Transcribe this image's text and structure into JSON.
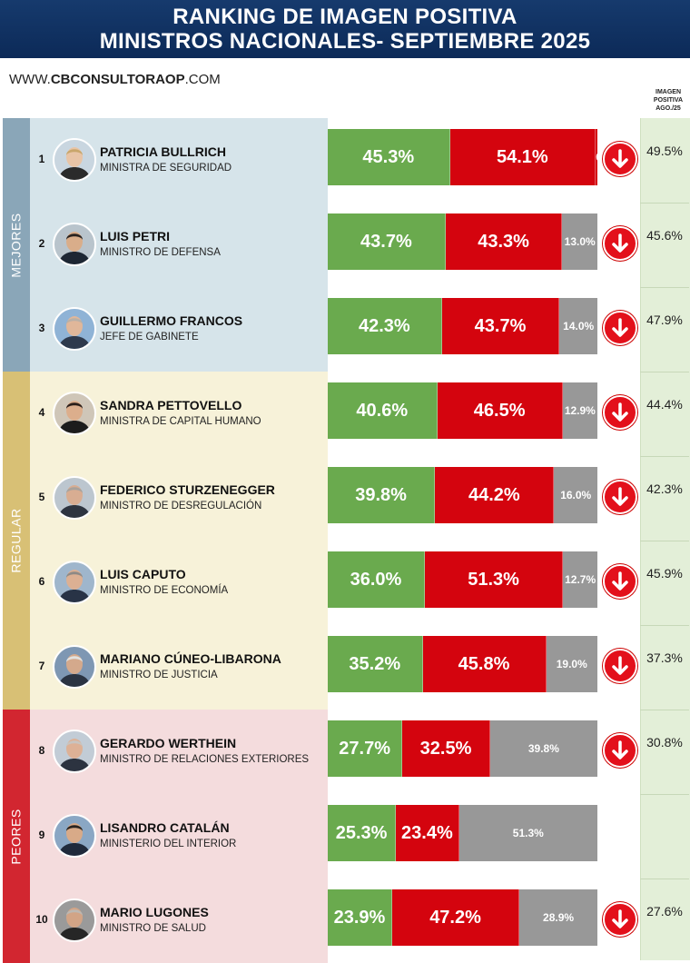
{
  "header": {
    "title_line1": "RANKING DE IMAGEN POSITIVA",
    "title_line2": "MINISTROS NACIONALES- SEPTIEMBRE 2025"
  },
  "website": {
    "prefix": "WWW.",
    "brand": "CBCONSULTORAOP",
    "suffix": ".COM"
  },
  "prev_column_header": [
    "IMAGEN",
    "POSITIVA",
    "AGO./25"
  ],
  "groups": [
    {
      "label": "MEJORES",
      "color": "#8aa6b8",
      "bg": "#d6e4ea"
    },
    {
      "label": "REGULAR",
      "color": "#d8c075",
      "bg": "#f7f2d9"
    },
    {
      "label": "PEORES",
      "color": "#d22630",
      "bg": "#f4dcdd"
    }
  ],
  "colors": {
    "positive": "#6aaa4e",
    "negative": "#d4040e",
    "nsnc": "#989898",
    "arrow": "#e3101b",
    "header": "#163a6d"
  },
  "chart_data": {
    "type": "bar",
    "stacked": true,
    "orientation": "horizontal",
    "title": "RANKING DE IMAGEN POSITIVA MINISTROS NACIONALES- SEPTIEMBRE 2025",
    "categories": [
      "PATRICIA BULLRICH",
      "LUIS PETRI",
      "GUILLERMO FRANCOS",
      "SANDRA PETTOVELLO",
      "FEDERICO STURZENEGGER",
      "LUIS CAPUTO",
      "MARIANO CÚNEO-LIBARONA",
      "GERARDO WERTHEIN",
      "LISANDRO CATALÁN",
      "MARIO LUGONES"
    ],
    "series": [
      {
        "values": [
          45.3,
          43.7,
          42.3,
          40.6,
          39.8,
          36.0,
          35.2,
          27.7,
          25.3,
          23.9
        ]
      },
      {
        "values": [
          54.1,
          43.3,
          43.7,
          46.5,
          44.2,
          51.3,
          45.8,
          32.5,
          23.4,
          47.2
        ]
      },
      {
        "values": [
          0.6,
          13.0,
          14.0,
          12.9,
          16.0,
          12.7,
          19.0,
          39.8,
          51.3,
          28.9
        ]
      }
    ],
    "previous_positive": [
      49.5,
      45.6,
      47.9,
      44.4,
      42.3,
      45.9,
      37.3,
      30.8,
      null,
      27.6
    ],
    "xlim": [
      0,
      100
    ]
  },
  "rows": [
    {
      "rank": "1",
      "name": "PATRICIA BULLRICH",
      "role": "MINISTRA DE SEGURIDAD",
      "group": 0,
      "pos": 45.3,
      "neg": 54.1,
      "nsnc": 0.6,
      "pos_label": "45.3%",
      "neg_label": "54.1%",
      "nsnc_label": "0.6",
      "prev": "49.5%",
      "arrow": true,
      "skin": "#e8c4a6",
      "hair": "#c9a66b",
      "shirt": "#2b2b2b",
      "bgc": "#c9d6e0"
    },
    {
      "rank": "2",
      "name": "LUIS PETRI",
      "role": "MINISTRO DE DEFENSA",
      "group": 0,
      "pos": 43.7,
      "neg": 43.3,
      "nsnc": 13.0,
      "pos_label": "43.7%",
      "neg_label": "43.3%",
      "nsnc_label": "13.0%",
      "prev": "45.6%",
      "arrow": true,
      "skin": "#d9ad8a",
      "hair": "#2a2320",
      "shirt": "#1d2633",
      "bgc": "#b9c4cc"
    },
    {
      "rank": "3",
      "name": "GUILLERMO FRANCOS",
      "role": "JEFE DE GABINETE",
      "group": 0,
      "pos": 42.3,
      "neg": 43.7,
      "nsnc": 14.0,
      "pos_label": "42.3%",
      "neg_label": "43.7%",
      "nsnc_label": "14.0%",
      "prev": "47.9%",
      "arrow": true,
      "skin": "#e0b79a",
      "hair": "#b8b0a8",
      "shirt": "#2e3a4d",
      "bgc": "#8fb3d6"
    },
    {
      "rank": "4",
      "name": "SANDRA PETTOVELLO",
      "role": "MINISTRA DE CAPITAL HUMANO",
      "group": 1,
      "pos": 40.6,
      "neg": 46.5,
      "nsnc": 12.9,
      "pos_label": "40.6%",
      "neg_label": "46.5%",
      "nsnc_label": "12.9%",
      "prev": "44.4%",
      "arrow": true,
      "skin": "#dcae8c",
      "hair": "#2b1f1a",
      "shirt": "#1c1c1c",
      "bgc": "#cfc6b8"
    },
    {
      "rank": "5",
      "name": "FEDERICO STURZENEGGER",
      "role": "MINISTRO DE DESREGULACIÓN",
      "group": 1,
      "pos": 39.8,
      "neg": 44.2,
      "nsnc": 16.0,
      "pos_label": "39.8%",
      "neg_label": "44.2%",
      "nsnc_label": "16.0%",
      "prev": "42.3%",
      "arrow": true,
      "skin": "#d8ad92",
      "hair": "#a8a29c",
      "shirt": "#2d3440",
      "bgc": "#bcc6cf"
    },
    {
      "rank": "6",
      "name": "LUIS CAPUTO",
      "role": "MINISTRO DE ECONOMÍA",
      "group": 1,
      "pos": 36.0,
      "neg": 51.3,
      "nsnc": 12.7,
      "pos_label": "36.0%",
      "neg_label": "51.3%",
      "nsnc_label": "12.7%",
      "prev": "45.9%",
      "arrow": true,
      "skin": "#dcb093",
      "hair": "#8e8a86",
      "shirt": "#283346",
      "bgc": "#9fb6cc"
    },
    {
      "rank": "7",
      "name": "MARIANO CÚNEO-LIBARONA",
      "role": "MINISTRO DE JUSTICIA",
      "group": 1,
      "pos": 35.2,
      "neg": 45.8,
      "nsnc": 19.0,
      "pos_label": "35.2%",
      "neg_label": "45.8%",
      "nsnc_label": "19.0%",
      "prev": "37.3%",
      "arrow": true,
      "skin": "#d4a98c",
      "hair": "#e2e2e0",
      "shirt": "#2a3342",
      "bgc": "#7e97b3"
    },
    {
      "rank": "8",
      "name": "GERARDO WERTHEIN",
      "role": "MINISTRO DE RELACIONES EXTERIORES",
      "group": 2,
      "pos": 27.7,
      "neg": 32.5,
      "nsnc": 39.8,
      "pos_label": "27.7%",
      "neg_label": "32.5%",
      "nsnc_label": "39.8%",
      "prev": "30.8%",
      "arrow": true,
      "skin": "#ddb196",
      "hair": "#c8c4c0",
      "shirt": "#2c3340",
      "bgc": "#c2ccd6"
    },
    {
      "rank": "9",
      "name": "LISANDRO CATALÁN",
      "role": "MINISTERIO DEL INTERIOR",
      "group": 2,
      "pos": 25.3,
      "neg": 23.4,
      "nsnc": 51.3,
      "pos_label": "25.3%",
      "neg_label": "23.4%",
      "nsnc_label": "51.3%",
      "prev": "",
      "arrow": false,
      "skin": "#d8aa88",
      "hair": "#2a2420",
      "shirt": "#1f2a3b",
      "bgc": "#8aa7c4"
    },
    {
      "rank": "10",
      "name": "MARIO LUGONES",
      "role": "MINISTRO DE SALUD",
      "group": 2,
      "pos": 23.9,
      "neg": 47.2,
      "nsnc": 28.9,
      "pos_label": "23.9%",
      "neg_label": "47.2%",
      "nsnc_label": "28.9%",
      "prev": "27.6%",
      "arrow": true,
      "skin": "#d2a486",
      "hair": "#bdb8b2",
      "shirt": "#262626",
      "bgc": "#9a9a9a"
    }
  ]
}
